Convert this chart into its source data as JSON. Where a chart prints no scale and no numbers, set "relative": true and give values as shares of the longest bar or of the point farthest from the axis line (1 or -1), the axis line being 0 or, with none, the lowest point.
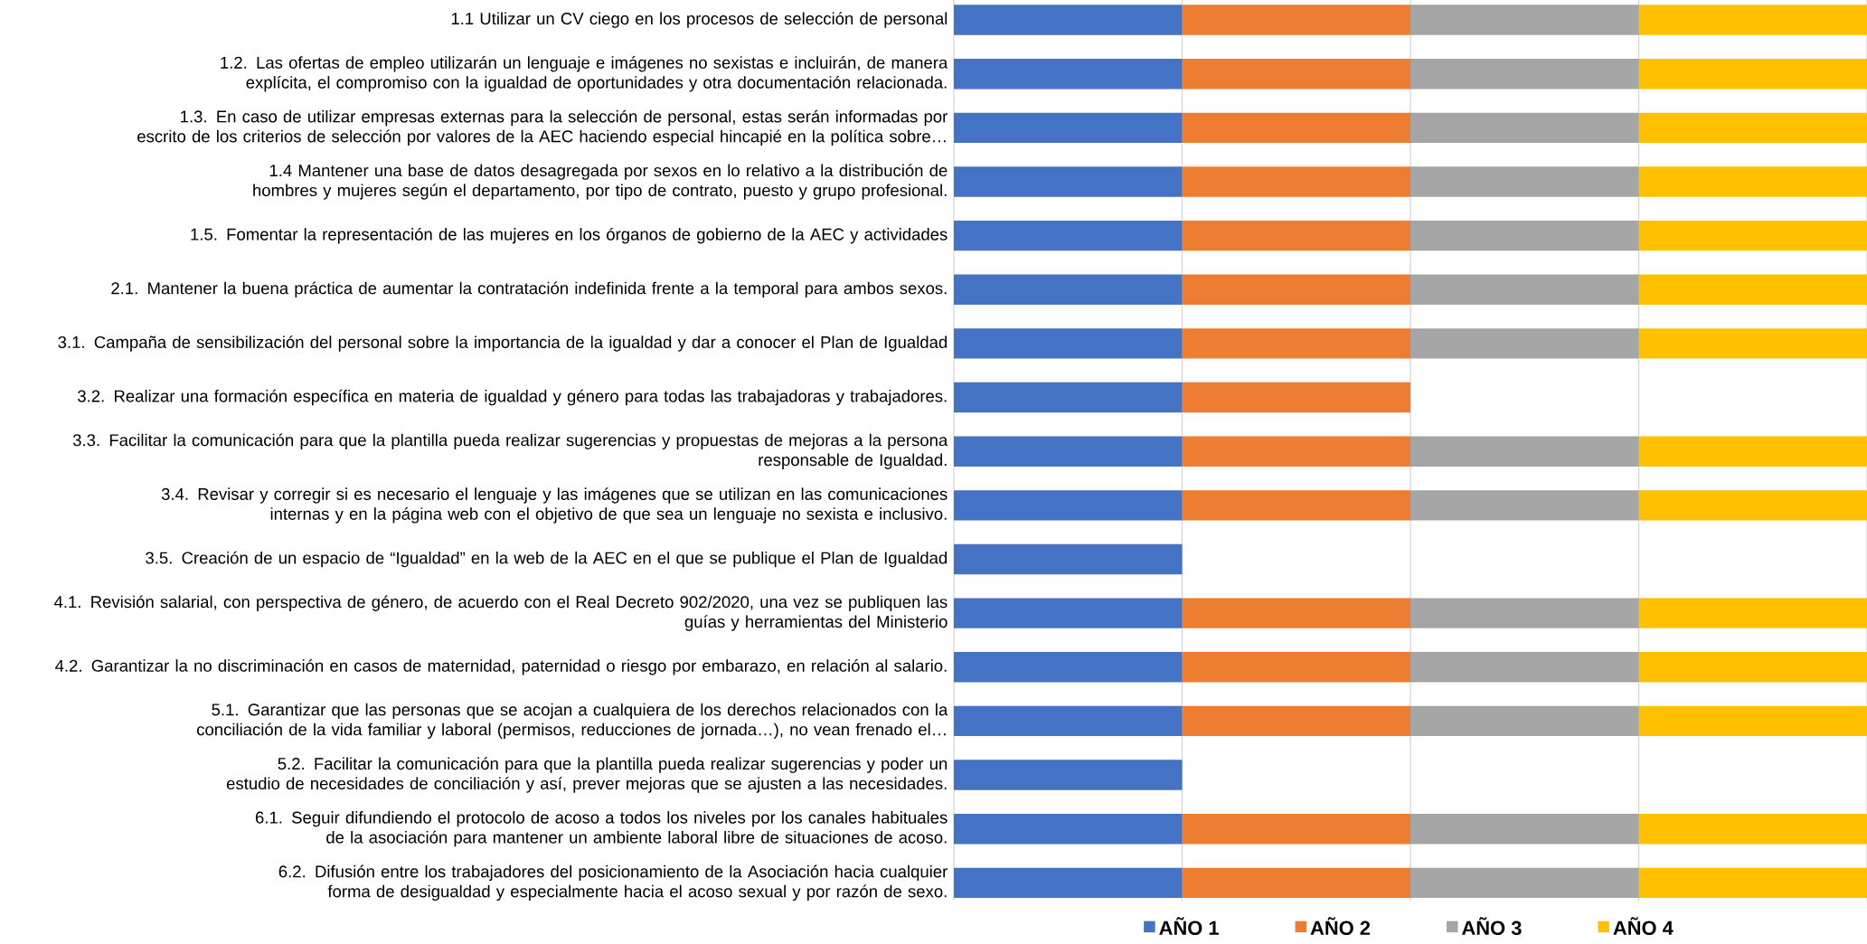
{
  "chart_data": {
    "type": "bar",
    "orientation": "horizontal",
    "stacked": true,
    "relative": true,
    "grid": "x",
    "legend": "bottom",
    "categories": [
      "1.1 Utilizar un CV ciego en los procesos de selección de personal",
      "1.2. Las ofertas de empleo utilizarán un lenguaje e imágenes no sexistas e incluirán, de manera explícita, el compromiso con la igualdad de oportunidades y otra documentación relacionada.",
      "1.3. En caso de utilizar empresas externas para la selección de personal, estas serán informadas por escrito de los criterios de selección por valores de la AEC haciendo especial hincapié en la política sobre…",
      "1.4 Mantener una base de datos desagregada por sexos en lo relativo a la distribución de hombres y mujeres según el departamento, por tipo de contrato, puesto y grupo profesional.",
      "1.5. Fomentar la representación de las mujeres en los órganos de gobierno de la AEC y actividades",
      "2.1. Mantener la buena práctica de aumentar la contratación indefinida frente a la temporal para ambos sexos.",
      "3.1. Campaña de sensibilización del personal sobre la importancia de la igualdad y dar a conocer el Plan de Igualdad",
      "3.2. Realizar una formación específica en materia de igualdad y género para todas las trabajadoras y trabajadores.",
      "3.3. Facilitar la comunicación para que la plantilla pueda realizar sugerencias y propuestas de mejoras a la persona responsable de Igualdad.",
      "3.4. Revisar y corregir si es necesario el lenguaje y las imágenes que se utilizan en las comunicaciones internas y en la página web con el objetivo de que sea un lenguaje no sexista e inclusivo.",
      "3.5. Creación de un espacio de “Igualdad” en la web de la AEC en el que se publique el Plan de Igualdad",
      "4.1. Revisión salarial, con perspectiva de género, de acuerdo con el Real Decreto 902/2020, una vez se publiquen las guías y herramientas del Ministerio",
      "4.2. Garantizar la no discriminación en casos de maternidad, paternidad o riesgo por embarazo, en relación al salario.",
      "5.1. Garantizar que las personas que se acojan a cualquiera de los derechos relacionados con la conciliación de la vida familiar y laboral (permisos, reducciones de jornada…), no vean frenado el…",
      "5.2. Facilitar la comunicación para que la plantilla pueda realizar sugerencias y poder un estudio de necesidades de conciliación y así, prever mejoras que se ajusten a las necesidades.",
      "6.1. Seguir difundiendo el protocolo de acoso a todos los niveles por los canales habituales de la asociación para mantener un ambiente laboral libre de situaciones de acoso.",
      "6.2. Difusión entre los trabajadores del posicionamiento de la Asociación hacia cualquier forma de desigualdad y especialmente hacia el acoso sexual y por razón de sexo."
    ],
    "series": [
      {
        "name": "AÑO 1",
        "color": "#4472c4",
        "values": [
          0.25,
          0.25,
          0.25,
          0.25,
          0.25,
          0.25,
          0.25,
          0.25,
          0.25,
          0.25,
          0.25,
          0.25,
          0.25,
          0.25,
          0.25,
          0.25,
          0.25
        ]
      },
      {
        "name": "AÑO 2",
        "color": "#ed7d31",
        "values": [
          0.25,
          0.25,
          0.25,
          0.25,
          0.25,
          0.25,
          0.25,
          0.25,
          0.25,
          0.25,
          null,
          0.25,
          0.25,
          0.25,
          null,
          0.25,
          0.25
        ]
      },
      {
        "name": "AÑO 3",
        "color": "#a5a5a5",
        "values": [
          0.25,
          0.25,
          0.25,
          0.25,
          0.25,
          0.25,
          0.25,
          null,
          0.25,
          0.25,
          null,
          0.25,
          0.25,
          0.25,
          null,
          0.25,
          0.25
        ]
      },
      {
        "name": "AÑO 4",
        "color": "#ffc000",
        "values": [
          0.25,
          0.25,
          0.25,
          0.25,
          0.25,
          0.25,
          0.25,
          null,
          0.25,
          0.25,
          null,
          0.25,
          0.25,
          0.25,
          null,
          0.25,
          0.25
        ]
      }
    ]
  }
}
